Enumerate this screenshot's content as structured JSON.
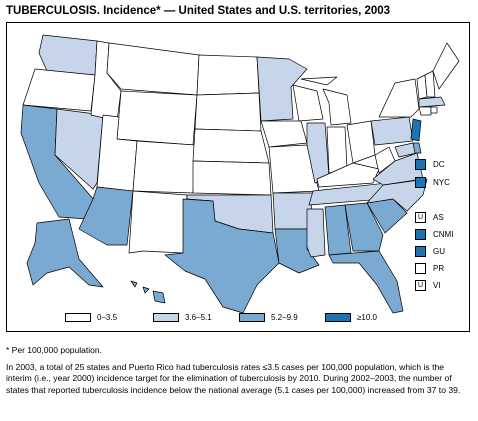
{
  "title": "TUBERCULOSIS. Incidence* — United States and U.S. territories, 2003",
  "colors": {
    "c0": "#ffffff",
    "c1": "#c6d5ea",
    "c2": "#7aa9d1",
    "c3": "#1e73b4",
    "border": "#000000"
  },
  "map_legend": [
    {
      "label": "0–3.5",
      "color": "#ffffff"
    },
    {
      "label": "3.6–5.1",
      "color": "#c6d5ea"
    },
    {
      "label": "5.2–9.9",
      "color": "#7aa9d1"
    },
    {
      "label": "≥10.0",
      "color": "#1e73b4"
    }
  ],
  "territories": [
    {
      "code": "DC",
      "color": "#1e73b4",
      "mark": ""
    },
    {
      "code": "NYC",
      "color": "#1e73b4",
      "mark": ""
    },
    {
      "code": "AS",
      "color": "#ffffff",
      "mark": "U"
    },
    {
      "code": "CNMI",
      "color": "#1e73b4",
      "mark": ""
    },
    {
      "code": "GU",
      "color": "#1e73b4",
      "mark": ""
    },
    {
      "code": "PR",
      "color": "#ffffff",
      "mark": ""
    },
    {
      "code": "VI",
      "color": "#ffffff",
      "mark": "U"
    }
  ],
  "footnote": "* Per 100,000 population.",
  "paragraph": "In 2003, a total of 25 states and Puerto Rico had tuberculosis rates ≤3.5 cases per 100,000 population, which is the interim (i.e., year 2000) incidence target for the elimination of tuberculosis by 2010. During 2002–2003, the number of states that reported tuberculosis incidence below the national average (5.1 cases per 100,000) increased from 37 to 39."
}
